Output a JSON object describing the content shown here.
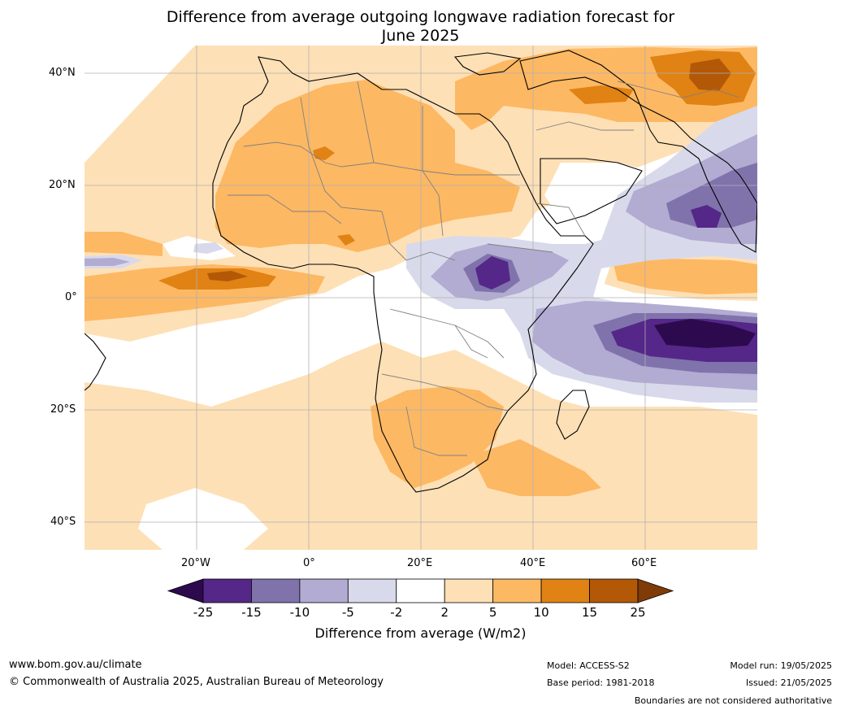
{
  "title_line1": "Difference from average outgoing longwave radiation forecast for",
  "title_line2": "June 2025",
  "lat_labels": [
    "40°N",
    "20°N",
    "0°",
    "20°S",
    "40°S"
  ],
  "lon_labels": [
    "20°W",
    "0°",
    "20°E",
    "40°E",
    "60°E"
  ],
  "colorbar": {
    "ticks": [
      "-25",
      "-15",
      "-10",
      "-5",
      "-2",
      "2",
      "5",
      "10",
      "15",
      "25"
    ],
    "label": "Difference from average (W/m2)",
    "colors": [
      "#2d0a4e",
      "#542788",
      "#8073ac",
      "#b2abd2",
      "#d8daeb",
      "#ffffff",
      "#fee0b6",
      "#fdb863",
      "#e08214",
      "#b35806",
      "#7f3b08"
    ]
  },
  "footer": {
    "website": "www.bom.gov.au/climate",
    "copyright": "© Commonwealth of Australia 2025, Australian Bureau of Meteorology",
    "model": "Model: ACCESS-S2",
    "base_period": "Base period: 1981-2018",
    "model_run": "Model run: 19/05/2025",
    "issued": "Issued: 21/05/2025",
    "disclaimer": "Boundaries are not considered authoritative"
  }
}
